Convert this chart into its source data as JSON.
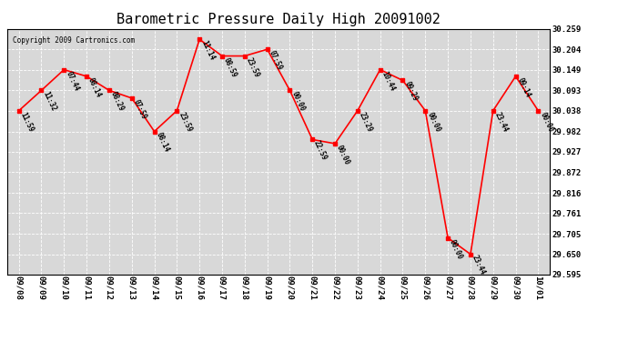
{
  "title": "Barometric Pressure Daily High 20091002",
  "copyright": "Copyright 2009 Cartronics.com",
  "x_labels": [
    "09/08",
    "09/09",
    "09/10",
    "09/11",
    "09/12",
    "09/13",
    "09/14",
    "09/15",
    "09/16",
    "09/17",
    "09/18",
    "09/19",
    "09/20",
    "09/21",
    "09/22",
    "09/23",
    "09/24",
    "09/25",
    "09/26",
    "09/27",
    "09/28",
    "09/29",
    "09/30",
    "10/01"
  ],
  "y_values": [
    30.038,
    30.093,
    30.149,
    30.131,
    30.093,
    30.072,
    29.982,
    30.038,
    30.231,
    30.186,
    30.186,
    30.204,
    30.093,
    29.96,
    29.949,
    30.038,
    30.149,
    30.12,
    30.038,
    29.694,
    29.65,
    30.038,
    30.131,
    30.038
  ],
  "time_labels": [
    "11:59",
    "11:32",
    "07:44",
    "08:14",
    "08:29",
    "07:59",
    "08:14",
    "23:59",
    "11:14",
    "08:59",
    "23:59",
    "07:59",
    "00:00",
    "22:59",
    "00:00",
    "23:29",
    "10:44",
    "09:29",
    "00:00",
    "00:00",
    "23:44",
    "23:44",
    "09:14",
    "00:00"
  ],
  "line_color": "#ff0000",
  "marker_color": "#ff0000",
  "bg_color": "#ffffff",
  "plot_bg_color": "#d8d8d8",
  "grid_color": "#bbbbbb",
  "text_color": "#000000",
  "ylim_min": 29.595,
  "ylim_max": 30.259,
  "yticks": [
    29.595,
    29.65,
    29.705,
    29.761,
    29.816,
    29.872,
    29.927,
    29.982,
    30.038,
    30.093,
    30.149,
    30.204,
    30.259
  ],
  "title_fontsize": 11,
  "tick_fontsize": 6.5,
  "annotation_fontsize": 5.5
}
